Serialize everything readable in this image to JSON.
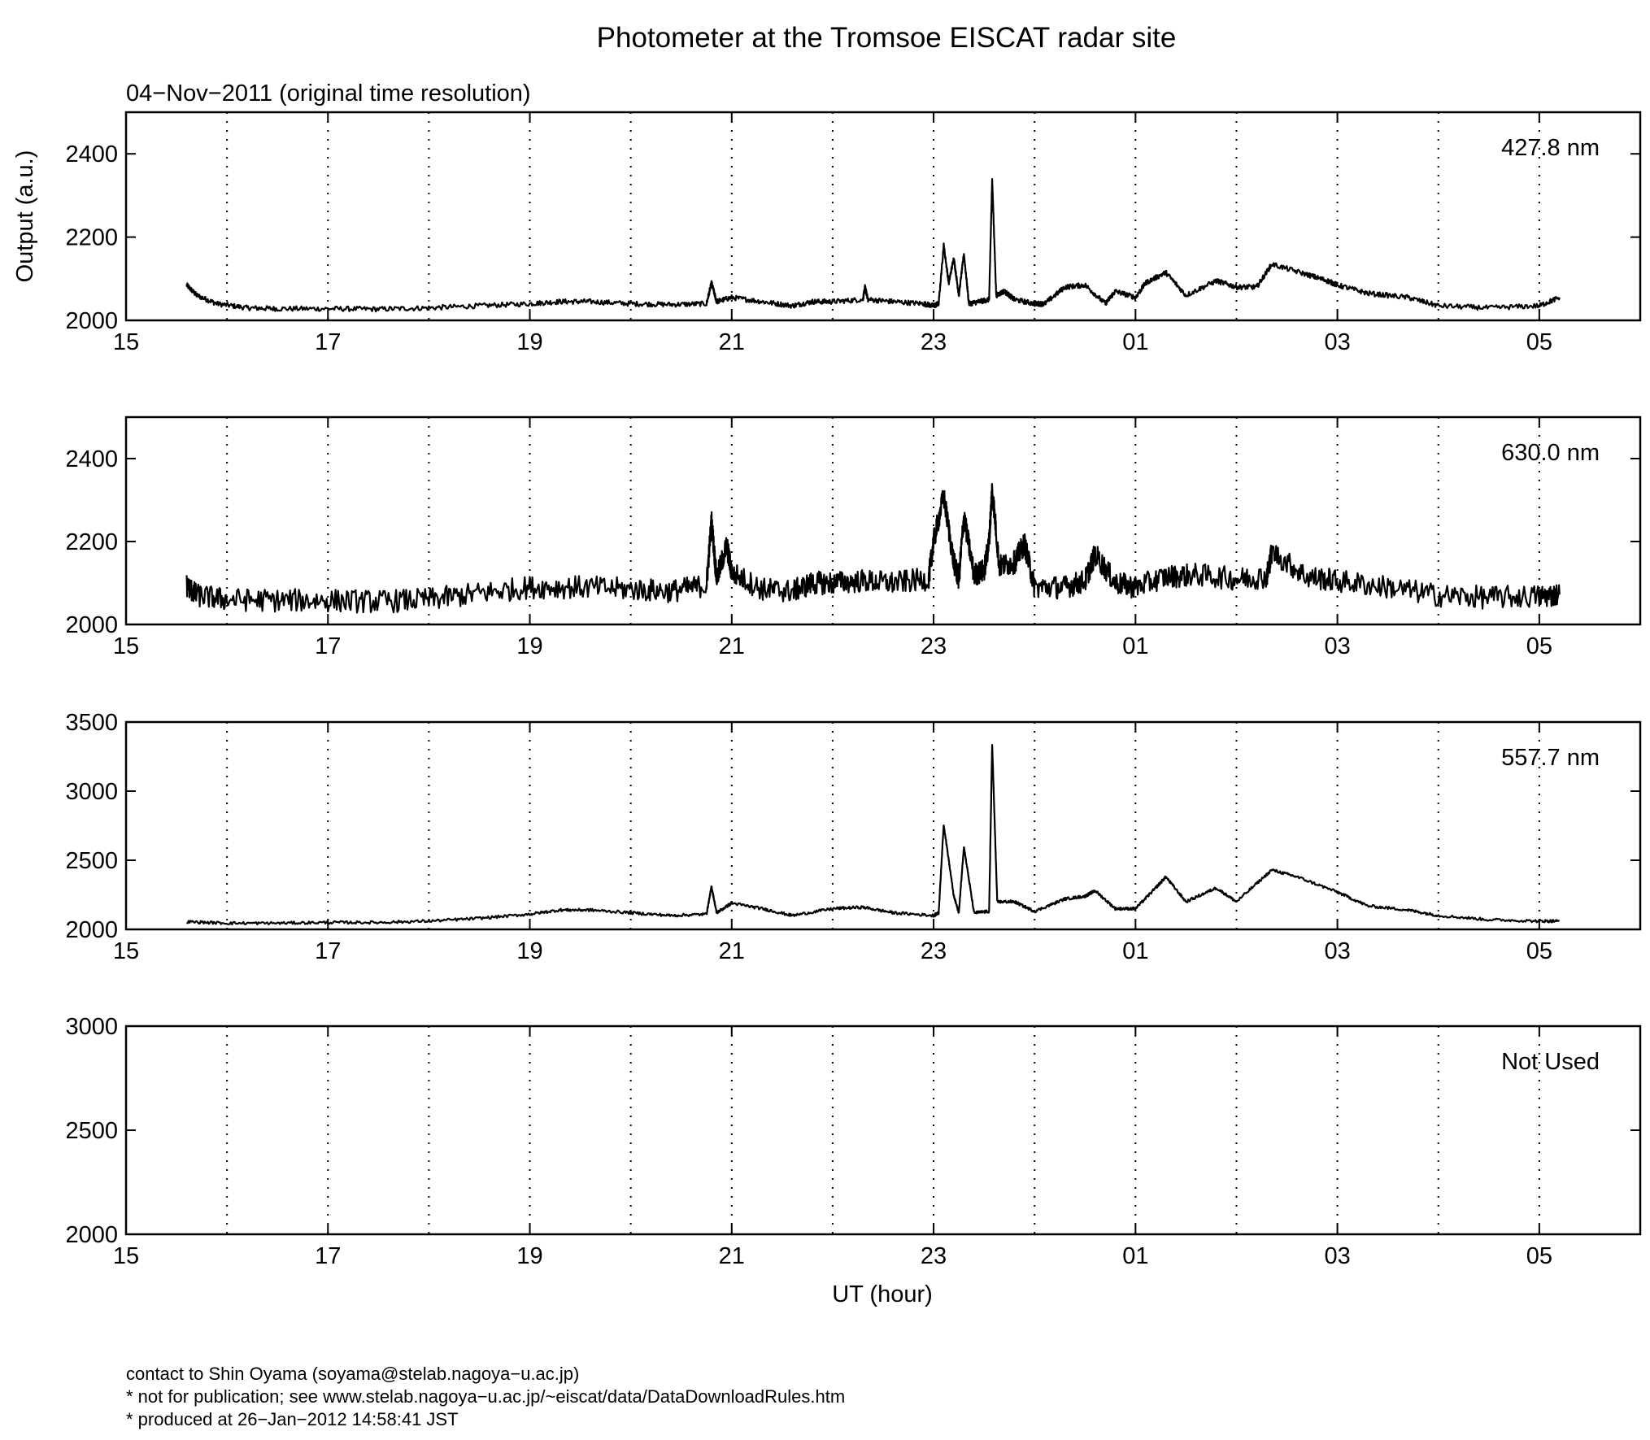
{
  "title": "Photometer at the Tromsoe EISCAT radar site",
  "subtitle": "04−Nov−2011 (original time resolution)",
  "ylabel": "Output (a.u.)",
  "xlabel": "UT (hour)",
  "x_tick_labels": [
    "15",
    "17",
    "19",
    "21",
    "23",
    "01",
    "03",
    "05"
  ],
  "footer": [
    "contact to Shin Oyama (soyama@stelab.nagoya−u.ac.jp)",
    "* not for publication; see www.stelab.nagoya−u.ac.jp/~eiscat/data/DataDownloadRules.htm",
    "* produced at 26−Jan−2012 14:58:41 JST"
  ],
  "chart_data": [
    {
      "type": "line",
      "name": "427.8 nm",
      "xlim": [
        15,
        30
      ],
      "ylim": [
        2000,
        2500
      ],
      "yticks": [
        2000,
        2200,
        2400
      ],
      "grid": "dotted vertical",
      "noise": 6,
      "x": [
        15.6,
        15.7,
        15.9,
        16.2,
        16.5,
        17.0,
        17.5,
        18.0,
        18.5,
        19.0,
        19.3,
        19.6,
        20.0,
        20.4,
        20.75,
        20.8,
        20.85,
        21.0,
        21.3,
        21.6,
        21.8,
        22.0,
        22.3,
        22.32,
        22.35,
        22.6,
        22.9,
        23.0,
        23.05,
        23.1,
        23.15,
        23.2,
        23.25,
        23.3,
        23.35,
        23.45,
        23.55,
        23.58,
        23.62,
        23.7,
        23.8,
        24.0,
        24.1,
        24.3,
        24.5,
        24.7,
        24.8,
        25.0,
        25.1,
        25.3,
        25.5,
        25.8,
        26.0,
        26.2,
        26.35,
        26.7,
        26.9,
        27.0,
        27.3,
        27.7,
        28.0,
        28.5,
        29.0,
        29.2
      ],
      "y": [
        2085,
        2060,
        2040,
        2030,
        2028,
        2028,
        2027,
        2030,
        2035,
        2040,
        2045,
        2045,
        2040,
        2038,
        2040,
        2090,
        2045,
        2055,
        2045,
        2035,
        2045,
        2045,
        2050,
        2080,
        2050,
        2045,
        2040,
        2035,
        2040,
        2180,
        2090,
        2150,
        2060,
        2160,
        2040,
        2045,
        2050,
        2340,
        2060,
        2070,
        2050,
        2040,
        2040,
        2080,
        2085,
        2040,
        2070,
        2055,
        2090,
        2115,
        2060,
        2095,
        2080,
        2080,
        2135,
        2110,
        2095,
        2085,
        2065,
        2055,
        2035,
        2030,
        2035,
        2055
      ]
    },
    {
      "type": "line",
      "name": "630.0 nm",
      "xlim": [
        15,
        30
      ],
      "ylim": [
        2000,
        2500
      ],
      "yticks": [
        2000,
        2200,
        2400
      ],
      "grid": "dotted vertical",
      "noise": 28,
      "x": [
        15.6,
        15.7,
        16.0,
        16.5,
        17.0,
        17.5,
        18.0,
        18.5,
        19.0,
        19.5,
        20.0,
        20.4,
        20.75,
        20.8,
        20.85,
        20.95,
        21.0,
        21.3,
        21.6,
        21.8,
        22.0,
        22.3,
        22.6,
        22.95,
        23.0,
        23.1,
        23.2,
        23.25,
        23.3,
        23.4,
        23.5,
        23.55,
        23.58,
        23.65,
        23.8,
        23.9,
        24.0,
        24.3,
        24.5,
        24.6,
        24.8,
        25.0,
        25.3,
        25.6,
        26.0,
        26.3,
        26.35,
        26.7,
        27.0,
        27.5,
        28.0,
        28.5,
        29.0,
        29.2
      ],
      "y": [
        2095,
        2070,
        2060,
        2058,
        2058,
        2055,
        2060,
        2075,
        2090,
        2090,
        2085,
        2080,
        2095,
        2250,
        2110,
        2190,
        2125,
        2085,
        2080,
        2100,
        2100,
        2105,
        2100,
        2110,
        2200,
        2310,
        2150,
        2110,
        2260,
        2120,
        2130,
        2200,
        2330,
        2140,
        2150,
        2195,
        2090,
        2090,
        2105,
        2170,
        2100,
        2090,
        2115,
        2120,
        2110,
        2115,
        2175,
        2115,
        2105,
        2090,
        2070,
        2065,
        2068,
        2072
      ]
    },
    {
      "type": "line",
      "name": "557.7 nm",
      "xlim": [
        15,
        30
      ],
      "ylim": [
        2000,
        3500
      ],
      "yticks": [
        2000,
        2500,
        3000,
        3500
      ],
      "grid": "dotted vertical",
      "noise": 10,
      "x": [
        15.6,
        16.0,
        16.5,
        17.0,
        17.5,
        18.0,
        18.5,
        19.0,
        19.3,
        19.6,
        20.0,
        20.4,
        20.75,
        20.8,
        20.85,
        21.0,
        21.3,
        21.6,
        22.0,
        22.3,
        22.6,
        23.0,
        23.05,
        23.1,
        23.2,
        23.25,
        23.3,
        23.4,
        23.55,
        23.58,
        23.63,
        23.8,
        24.0,
        24.3,
        24.5,
        24.6,
        24.8,
        25.0,
        25.2,
        25.3,
        25.5,
        25.8,
        26.0,
        26.35,
        26.6,
        27.0,
        27.3,
        27.7,
        28.0,
        28.5,
        29.0,
        29.2
      ],
      "y": [
        2055,
        2045,
        2045,
        2050,
        2050,
        2060,
        2080,
        2110,
        2140,
        2140,
        2120,
        2100,
        2110,
        2310,
        2120,
        2190,
        2150,
        2100,
        2150,
        2160,
        2120,
        2100,
        2120,
        2760,
        2240,
        2120,
        2600,
        2120,
        2130,
        3340,
        2200,
        2200,
        2130,
        2220,
        2240,
        2280,
        2150,
        2150,
        2300,
        2380,
        2200,
        2300,
        2200,
        2430,
        2380,
        2270,
        2170,
        2140,
        2100,
        2070,
        2060,
        2060
      ]
    },
    {
      "type": "line",
      "name": "Not Used",
      "xlim": [
        15,
        30
      ],
      "ylim": [
        2000,
        3000
      ],
      "yticks": [
        2000,
        2500,
        3000
      ],
      "grid": "dotted vertical",
      "x": [],
      "y": []
    }
  ]
}
